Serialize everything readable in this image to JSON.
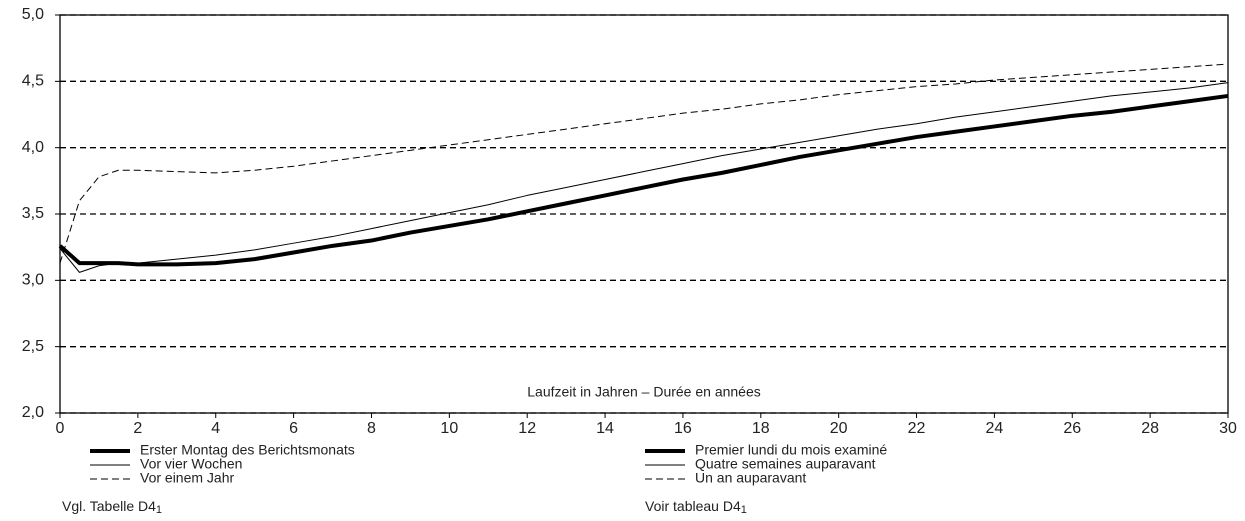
{
  "chart_data": {
    "type": "line",
    "xlabel": "Laufzeit in Jahren – Durée en années",
    "x": [
      0,
      0.5,
      1,
      1.5,
      2,
      3,
      4,
      5,
      6,
      7,
      8,
      9,
      10,
      11,
      12,
      13,
      14,
      15,
      16,
      17,
      18,
      19,
      20,
      21,
      22,
      23,
      24,
      25,
      26,
      27,
      28,
      29,
      30
    ],
    "series": [
      {
        "name": "Erster Montag des Berichtsmonats",
        "name_fr": "Premier lundi du mois examiné",
        "color": "#000000",
        "line_width": 4,
        "dashed": false,
        "values": [
          3.26,
          3.13,
          3.13,
          3.13,
          3.12,
          3.12,
          3.13,
          3.16,
          3.21,
          3.26,
          3.3,
          3.36,
          3.41,
          3.46,
          3.52,
          3.58,
          3.64,
          3.7,
          3.76,
          3.81,
          3.87,
          3.93,
          3.98,
          4.03,
          4.08,
          4.12,
          4.16,
          4.2,
          4.24,
          4.27,
          4.31,
          4.35,
          4.39
        ]
      },
      {
        "name": "Vor vier Wochen",
        "name_fr": "Quatre semaines auparavant",
        "color": "#000000",
        "line_width": 1,
        "dashed": false,
        "values": [
          3.24,
          3.06,
          3.11,
          3.13,
          3.13,
          3.16,
          3.19,
          3.23,
          3.28,
          3.33,
          3.39,
          3.45,
          3.51,
          3.57,
          3.64,
          3.7,
          3.76,
          3.82,
          3.88,
          3.94,
          3.99,
          4.04,
          4.09,
          4.14,
          4.18,
          4.23,
          4.27,
          4.31,
          4.35,
          4.39,
          4.42,
          4.45,
          4.49
        ]
      },
      {
        "name": "Vor einem Jahr",
        "name_fr": "Un an auparavant",
        "color": "#000000",
        "line_width": 1,
        "dashed": true,
        "values": [
          3.13,
          3.6,
          3.78,
          3.83,
          3.83,
          3.82,
          3.81,
          3.83,
          3.86,
          3.9,
          3.94,
          3.98,
          4.02,
          4.06,
          4.1,
          4.14,
          4.18,
          4.22,
          4.26,
          4.29,
          4.33,
          4.36,
          4.4,
          4.43,
          4.46,
          4.48,
          4.51,
          4.53,
          4.55,
          4.57,
          4.59,
          4.61,
          4.63
        ]
      }
    ],
    "xlim": [
      0,
      30
    ],
    "xticks": [
      0,
      2,
      4,
      6,
      8,
      10,
      12,
      14,
      16,
      18,
      20,
      22,
      24,
      26,
      28,
      30
    ],
    "ylim": [
      2,
      5
    ],
    "yticks": [
      {
        "value": 2,
        "label": "2,0"
      },
      {
        "value": 2.5,
        "label": "2,5"
      },
      {
        "value": 3,
        "label": "3,0"
      },
      {
        "value": 3.5,
        "label": "3,5"
      },
      {
        "value": 4,
        "label": "4,0"
      },
      {
        "value": 4.5,
        "label": "4,5"
      },
      {
        "value": 5,
        "label": "5,0"
      }
    ],
    "grid": true,
    "note_de": "Vgl. Tabelle D4",
    "note_fr": "Voir tableau D4",
    "note_marker": "1"
  }
}
